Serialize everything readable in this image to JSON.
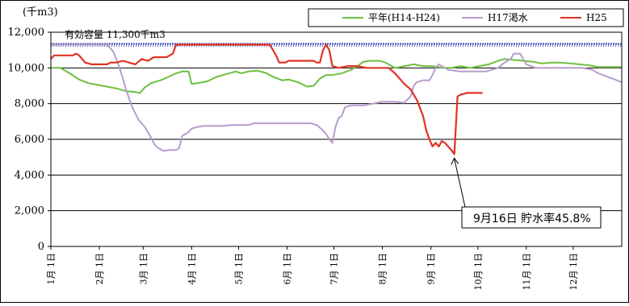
{
  "chart_data": {
    "type": "line",
    "unit_label": "(千m3)",
    "y_ticks": [
      0,
      2000,
      4000,
      6000,
      8000,
      10000,
      12000
    ],
    "y_tick_labels": [
      "0",
      "2,000",
      "4,000",
      "6,000",
      "8,000",
      "10,000",
      "12,000"
    ],
    "ylim": [
      0,
      12000
    ],
    "x_tick_labels": [
      "1月 1日",
      "2月 1日",
      "3月 1日",
      "4月 1日",
      "5月 1日",
      "6月 1日",
      "7月 1日",
      "8月 1日",
      "9月 1日",
      "10月 1日",
      "11月 1日",
      "12月 1日"
    ],
    "x_tick_days": [
      0,
      31,
      59,
      90,
      120,
      151,
      181,
      212,
      243,
      273,
      304,
      334
    ],
    "xlim_days": [
      0,
      365
    ],
    "grid": "horizontal",
    "legend_position": "top-right",
    "capacity": {
      "label": "有効容量 11,300千m3",
      "value": 11300,
      "color": "#2e3ea8"
    },
    "annotation": {
      "text": "9月16日 貯水率45.8%",
      "day": 258,
      "value": 5170
    },
    "series": [
      {
        "name": "平年(H14-H24)",
        "color": "#6cbf3d",
        "points": [
          [
            0,
            10000
          ],
          [
            6,
            10000
          ],
          [
            12,
            9700
          ],
          [
            18,
            9350
          ],
          [
            24,
            9150
          ],
          [
            30,
            9050
          ],
          [
            36,
            8950
          ],
          [
            42,
            8850
          ],
          [
            48,
            8700
          ],
          [
            54,
            8650
          ],
          [
            57,
            8600
          ],
          [
            60,
            8900
          ],
          [
            64,
            9150
          ],
          [
            70,
            9300
          ],
          [
            74,
            9450
          ],
          [
            80,
            9700
          ],
          [
            84,
            9800
          ],
          [
            88,
            9800
          ],
          [
            90,
            9100
          ],
          [
            94,
            9150
          ],
          [
            100,
            9250
          ],
          [
            106,
            9500
          ],
          [
            112,
            9650
          ],
          [
            118,
            9800
          ],
          [
            122,
            9700
          ],
          [
            126,
            9800
          ],
          [
            132,
            9850
          ],
          [
            138,
            9700
          ],
          [
            142,
            9500
          ],
          [
            148,
            9300
          ],
          [
            152,
            9350
          ],
          [
            158,
            9200
          ],
          [
            164,
            8950
          ],
          [
            168,
            9000
          ],
          [
            172,
            9400
          ],
          [
            176,
            9600
          ],
          [
            180,
            9600
          ],
          [
            186,
            9700
          ],
          [
            192,
            9900
          ],
          [
            196,
            10100
          ],
          [
            200,
            10350
          ],
          [
            204,
            10400
          ],
          [
            210,
            10400
          ],
          [
            214,
            10300
          ],
          [
            220,
            10000
          ],
          [
            226,
            10100
          ],
          [
            232,
            10200
          ],
          [
            238,
            10100
          ],
          [
            244,
            10100
          ],
          [
            250,
            10000
          ],
          [
            256,
            10000
          ],
          [
            262,
            10100
          ],
          [
            268,
            10000
          ],
          [
            274,
            10100
          ],
          [
            280,
            10200
          ],
          [
            286,
            10400
          ],
          [
            290,
            10500
          ],
          [
            296,
            10450
          ],
          [
            302,
            10400
          ],
          [
            308,
            10350
          ],
          [
            314,
            10250
          ],
          [
            320,
            10300
          ],
          [
            326,
            10300
          ],
          [
            332,
            10250
          ],
          [
            338,
            10200
          ],
          [
            344,
            10150
          ],
          [
            350,
            10050
          ],
          [
            356,
            10050
          ],
          [
            365,
            10050
          ]
        ]
      },
      {
        "name": "H17渇水",
        "color": "#b79ccd",
        "points": [
          [
            0,
            11300
          ],
          [
            36,
            11300
          ],
          [
            40,
            10900
          ],
          [
            44,
            10000
          ],
          [
            48,
            8800
          ],
          [
            52,
            7800
          ],
          [
            56,
            7100
          ],
          [
            60,
            6700
          ],
          [
            64,
            6100
          ],
          [
            66,
            5750
          ],
          [
            68,
            5550
          ],
          [
            70,
            5450
          ],
          [
            72,
            5350
          ],
          [
            76,
            5400
          ],
          [
            80,
            5400
          ],
          [
            82,
            5500
          ],
          [
            84,
            6200
          ],
          [
            88,
            6400
          ],
          [
            90,
            6600
          ],
          [
            94,
            6700
          ],
          [
            98,
            6750
          ],
          [
            104,
            6750
          ],
          [
            110,
            6750
          ],
          [
            116,
            6800
          ],
          [
            120,
            6800
          ],
          [
            126,
            6800
          ],
          [
            130,
            6900
          ],
          [
            136,
            6900
          ],
          [
            142,
            6900
          ],
          [
            150,
            6900
          ],
          [
            158,
            6900
          ],
          [
            166,
            6900
          ],
          [
            170,
            6800
          ],
          [
            174,
            6500
          ],
          [
            176,
            6300
          ],
          [
            178,
            6000
          ],
          [
            180,
            5800
          ],
          [
            182,
            6700
          ],
          [
            184,
            7200
          ],
          [
            186,
            7300
          ],
          [
            188,
            7800
          ],
          [
            192,
            7900
          ],
          [
            200,
            7900
          ],
          [
            206,
            8000
          ],
          [
            212,
            8100
          ],
          [
            220,
            8100
          ],
          [
            226,
            8050
          ],
          [
            230,
            8400
          ],
          [
            232,
            9000
          ],
          [
            234,
            9200
          ],
          [
            238,
            9300
          ],
          [
            242,
            9300
          ],
          [
            244,
            9600
          ],
          [
            246,
            10000
          ],
          [
            248,
            10200
          ],
          [
            250,
            10100
          ],
          [
            254,
            9900
          ],
          [
            258,
            9850
          ],
          [
            262,
            9800
          ],
          [
            270,
            9800
          ],
          [
            278,
            9800
          ],
          [
            286,
            10000
          ],
          [
            290,
            10300
          ],
          [
            294,
            10500
          ],
          [
            296,
            10800
          ],
          [
            300,
            10800
          ],
          [
            304,
            10200
          ],
          [
            310,
            10000
          ],
          [
            320,
            10000
          ],
          [
            330,
            10000
          ],
          [
            340,
            10000
          ],
          [
            346,
            9900
          ],
          [
            350,
            9700
          ],
          [
            356,
            9500
          ],
          [
            362,
            9300
          ],
          [
            365,
            9200
          ]
        ]
      },
      {
        "name": "H25",
        "color": "#e03322",
        "points": [
          [
            0,
            10500
          ],
          [
            2,
            10700
          ],
          [
            8,
            10700
          ],
          [
            14,
            10700
          ],
          [
            16,
            10800
          ],
          [
            18,
            10700
          ],
          [
            22,
            10300
          ],
          [
            26,
            10200
          ],
          [
            32,
            10200
          ],
          [
            36,
            10200
          ],
          [
            38,
            10300
          ],
          [
            42,
            10300
          ],
          [
            46,
            10400
          ],
          [
            50,
            10300
          ],
          [
            54,
            10200
          ],
          [
            58,
            10500
          ],
          [
            62,
            10400
          ],
          [
            66,
            10600
          ],
          [
            70,
            10600
          ],
          [
            74,
            10600
          ],
          [
            76,
            10700
          ],
          [
            78,
            10800
          ],
          [
            80,
            11300
          ],
          [
            90,
            11300
          ],
          [
            100,
            11300
          ],
          [
            110,
            11300
          ],
          [
            120,
            11300
          ],
          [
            130,
            11300
          ],
          [
            140,
            11300
          ],
          [
            144,
            10700
          ],
          [
            146,
            10300
          ],
          [
            150,
            10300
          ],
          [
            152,
            10400
          ],
          [
            158,
            10400
          ],
          [
            164,
            10400
          ],
          [
            168,
            10400
          ],
          [
            170,
            10300
          ],
          [
            172,
            10300
          ],
          [
            174,
            11000
          ],
          [
            176,
            11300
          ],
          [
            178,
            11000
          ],
          [
            180,
            10100
          ],
          [
            184,
            10000
          ],
          [
            190,
            10100
          ],
          [
            196,
            10100
          ],
          [
            202,
            10000
          ],
          [
            212,
            10000
          ],
          [
            216,
            10000
          ],
          [
            220,
            9700
          ],
          [
            226,
            9100
          ],
          [
            230,
            8800
          ],
          [
            234,
            8200
          ],
          [
            238,
            7300
          ],
          [
            240,
            6500
          ],
          [
            242,
            6000
          ],
          [
            244,
            5600
          ],
          [
            246,
            5800
          ],
          [
            248,
            5600
          ],
          [
            250,
            5900
          ],
          [
            252,
            5800
          ],
          [
            254,
            5600
          ],
          [
            256,
            5400
          ],
          [
            258,
            5170
          ],
          [
            260,
            8400
          ],
          [
            262,
            8500
          ],
          [
            266,
            8600
          ],
          [
            272,
            8600
          ],
          [
            276,
            8600
          ]
        ]
      }
    ]
  }
}
